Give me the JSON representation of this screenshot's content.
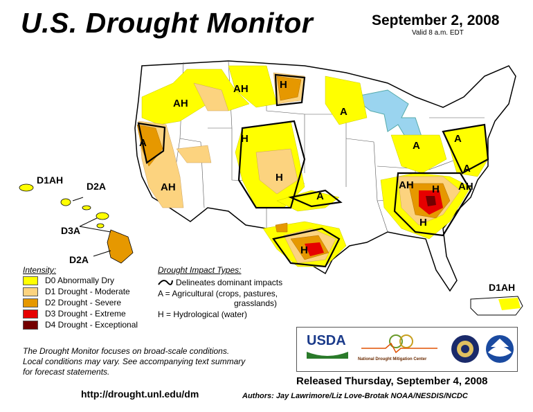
{
  "header": {
    "title": "U.S. Drought Monitor",
    "date": "September 2, 2008",
    "valid": "Valid 8 a.m. EDT"
  },
  "legend": {
    "intensity_title": "Intensity:",
    "items": [
      {
        "label": "D0 Abnormally Dry",
        "color": "#ffff00"
      },
      {
        "label": "D1 Drought - Moderate",
        "color": "#fcd37f"
      },
      {
        "label": "D2 Drought - Severe",
        "color": "#e69800"
      },
      {
        "label": "D3 Drought - Extreme",
        "color": "#e60000"
      },
      {
        "label": "D4 Drought - Exceptional",
        "color": "#730000"
      }
    ],
    "impact_title": "Drought Impact Types:",
    "impact_line": "Delineates dominant impacts",
    "impact_a_1": "A = Agricultural (crops, pastures,",
    "impact_a_2": "grasslands)",
    "impact_h": "H = Hydrological (water)"
  },
  "map_labels": {
    "ah_nw": "AH",
    "ah_mt": "AH",
    "h_nd": "H",
    "a_mn": "A",
    "a_ca": "A",
    "h_ut": "H",
    "ah_ca": "AH",
    "h_co": "H",
    "a_ks": "A",
    "h_tx": "H",
    "a_oh": "A",
    "a_ny": "A",
    "a_va": "A",
    "ah_tn": "AH",
    "h_ga": "H",
    "h_sc": "H",
    "ah_nc": "AH",
    "hawaii_1": "D1AH",
    "hawaii_2": "D2A",
    "hawaii_3": "D3A",
    "hawaii_4": "D2A",
    "puerto_rico": "D1AH"
  },
  "footer": {
    "note_1": "The Drought Monitor focuses on broad-scale conditions.",
    "note_2": "Local conditions may vary.  See accompanying text summary",
    "note_3": "for forecast statements.",
    "url": "http://drought.unl.edu/dm",
    "released": "Released Thursday, September 4, 2008",
    "authors": "Authors: Jay Lawrimore/Liz Love-Brotak NOAA/NESDIS/NCDC"
  },
  "logos": {
    "usda": "USDA",
    "ndmc": "National Drought Mitigation Center"
  }
}
